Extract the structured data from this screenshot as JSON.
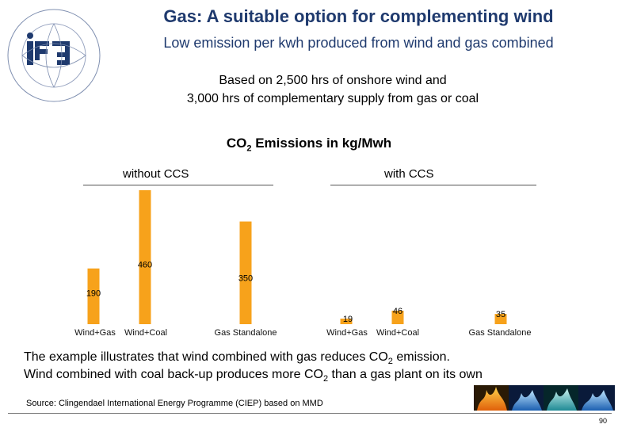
{
  "title": "Gas: A suitable option for complementing wind",
  "subtitle": "Low emission per kwh produced from wind and gas combined",
  "basis_line1": "Based on 2,500 hrs of onshore wind and",
  "basis_line2": "3,000 hrs of complementary supply from gas or coal",
  "chart_heading_pre": "CO",
  "chart_heading_sub": "2",
  "chart_heading_post": " Emissions in kg/Mwh",
  "colors": {
    "bar": "#f7a21b",
    "title": "#1f3a6e"
  },
  "icons": [
    "igu-logo",
    "flame-banner"
  ],
  "chart_data": [
    {
      "type": "bar",
      "title": "without CCS",
      "categories": [
        "Wind+Gas",
        "Wind+Coal",
        "Gas Standalone"
      ],
      "values": [
        190,
        460,
        350
      ],
      "ylim": [
        0,
        500
      ]
    },
    {
      "type": "bar",
      "title": "with CCS",
      "categories": [
        "Wind+Gas",
        "Wind+Coal",
        "Gas Standalone"
      ],
      "values": [
        19,
        46,
        35
      ],
      "ylim": [
        0,
        500
      ]
    }
  ],
  "conclusion_line1": {
    "pre": "The example illustrates that wind combined with gas reduces CO",
    "sub": "2",
    "post": " emission."
  },
  "conclusion_line2": {
    "pre": "Wind combined with coal back-up produces more CO",
    "sub": "2",
    "post": " than a gas plant on its own"
  },
  "source": "Source: Clingendael International Energy Programme (CIEP) based on MMD",
  "page_number": "90"
}
